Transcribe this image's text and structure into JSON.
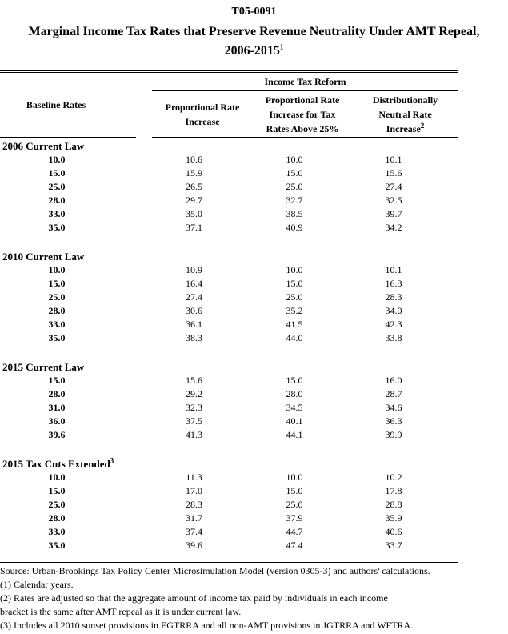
{
  "title": {
    "code": "T05-0091",
    "line1": "Marginal Income Tax Rates that Preserve Revenue Neutrality Under AMT Repeal,",
    "line2": "2006-2015",
    "line2_sup": "1"
  },
  "table": {
    "baseline_header": "Baseline Rates",
    "group_header": "Income Tax Reform",
    "columns": [
      {
        "lines": [
          "Proportional Rate",
          "Increase"
        ],
        "sup": ""
      },
      {
        "lines": [
          "Proportional Rate",
          "Increase for Tax",
          "Rates Above 25%"
        ],
        "sup": ""
      },
      {
        "lines": [
          "Distributionally",
          "Neutral Rate",
          "Increase"
        ],
        "sup": "2"
      }
    ],
    "sections": [
      {
        "label": "2006 Current Law",
        "sup": "",
        "rows": [
          [
            "10.0",
            "10.6",
            "10.0",
            "10.1"
          ],
          [
            "15.0",
            "15.9",
            "15.0",
            "15.6"
          ],
          [
            "25.0",
            "26.5",
            "25.0",
            "27.4"
          ],
          [
            "28.0",
            "29.7",
            "32.7",
            "32.5"
          ],
          [
            "33.0",
            "35.0",
            "38.5",
            "39.7"
          ],
          [
            "35.0",
            "37.1",
            "40.9",
            "34.2"
          ]
        ]
      },
      {
        "label": "2010 Current Law",
        "sup": "",
        "rows": [
          [
            "10.0",
            "10.9",
            "10.0",
            "10.1"
          ],
          [
            "15.0",
            "16.4",
            "15.0",
            "16.3"
          ],
          [
            "25.0",
            "27.4",
            "25.0",
            "28.3"
          ],
          [
            "28.0",
            "30.6",
            "35.2",
            "34.0"
          ],
          [
            "33.0",
            "36.1",
            "41.5",
            "42.3"
          ],
          [
            "35.0",
            "38.3",
            "44.0",
            "33.8"
          ]
        ]
      },
      {
        "label": "2015 Current Law",
        "sup": "",
        "rows": [
          [
            "15.0",
            "15.6",
            "15.0",
            "16.0"
          ],
          [
            "28.0",
            "29.2",
            "28.0",
            "28.7"
          ],
          [
            "31.0",
            "32.3",
            "34.5",
            "34.6"
          ],
          [
            "36.0",
            "37.5",
            "40.1",
            "36.3"
          ],
          [
            "39.6",
            "41.3",
            "44.1",
            "39.9"
          ]
        ]
      },
      {
        "label": "2015 Tax Cuts Extended",
        "sup": "3",
        "rows": [
          [
            "10.0",
            "11.3",
            "10.0",
            "10.2"
          ],
          [
            "15.0",
            "17.0",
            "15.0",
            "17.8"
          ],
          [
            "25.0",
            "28.3",
            "25.0",
            "28.8"
          ],
          [
            "28.0",
            "31.7",
            "37.9",
            "35.9"
          ],
          [
            "33.0",
            "37.4",
            "44.7",
            "40.6"
          ],
          [
            "35.0",
            "39.6",
            "47.4",
            "33.7"
          ]
        ]
      }
    ]
  },
  "footnotes": {
    "lines": [
      "Source: Urban-Brookings Tax Policy Center Microsimulation Model (version 0305-3) and authors' calculations.",
      "(1) Calendar years.",
      "(2) Rates are adjusted so that the aggregate amount of income tax paid by individuals in each income",
      "bracket is the same after AMT repeal as it is under current law.",
      "(3) Includes all 2010 sunset provisions in EGTRRA and all non-AMT provisions in JGTRRA and WFTRA."
    ]
  }
}
